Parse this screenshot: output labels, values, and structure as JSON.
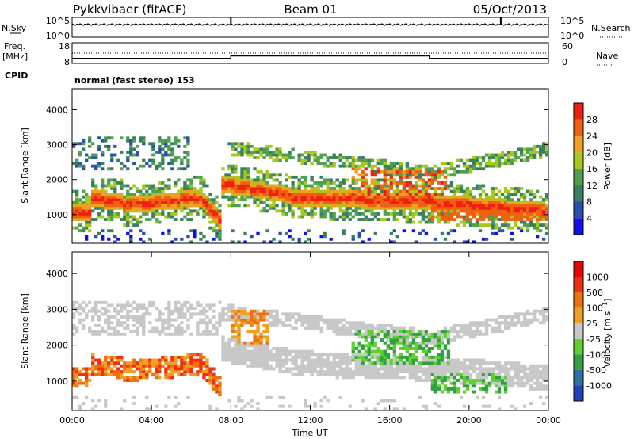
{
  "header": {
    "station": "Pykkvibaer (fitACF)",
    "beam": "Beam 01",
    "date": "05/Oct/2013"
  },
  "sky_panel": {
    "left_label": "N.Sky",
    "right_label": "N.Search",
    "left_ticks": [
      "10^5",
      "10^0"
    ],
    "right_ticks": [
      "10^5",
      "10^0"
    ]
  },
  "freq_panel": {
    "left_label_1": "Freq.",
    "left_label_2": "[MHz]",
    "right_label": "Nave",
    "left_ticks": [
      "18",
      "8"
    ],
    "right_ticks": [
      "60",
      "0"
    ],
    "freq_steps": [
      {
        "t": 0,
        "v": 10.2
      },
      {
        "t": 8,
        "v": 11.5
      },
      {
        "t": 18,
        "v": 10.2
      },
      {
        "t": 24,
        "v": 10.2
      }
    ]
  },
  "cpid": {
    "label": "CPID",
    "text": "normal (fast stereo) 153"
  },
  "chart_data": [
    {
      "type": "heatmap",
      "name": "power",
      "ylabel": "Slant Range [km]",
      "ylim": [
        180,
        4600
      ],
      "yticks": [
        "1000",
        "2000",
        "3000",
        "4000"
      ],
      "colorbar_label": "Power [dB]",
      "colorbar_ticks": [
        "4",
        "8",
        "12",
        "16",
        "20",
        "24",
        "28"
      ],
      "colors": [
        "#1010ee",
        "#2a4fae",
        "#3a7f5e",
        "#4fa050",
        "#a8c820",
        "#f0a020",
        "#f06010",
        "#f02010"
      ]
    },
    {
      "type": "heatmap",
      "name": "velocity",
      "ylabel": "Slant Range [km]",
      "xlabel": "Time UT",
      "ylim": [
        180,
        4600
      ],
      "xlim": [
        0,
        24
      ],
      "yticks": [
        "1000",
        "2000",
        "3000",
        "4000"
      ],
      "xticks": [
        "00:00",
        "04:00",
        "08:00",
        "12:00",
        "16:00",
        "20:00",
        "00:00"
      ],
      "colorbar_label": "Velocity [m s^-1]",
      "colorbar_ticks": [
        "1000",
        "500",
        "100",
        "25",
        "-25",
        "-100",
        "-500",
        "-1000"
      ],
      "colors": [
        "#2040c0",
        "#3070a0",
        "#30a040",
        "#60d030",
        "#c8c8c8",
        "#f0a020",
        "#f07010",
        "#f03010",
        "#f00000"
      ]
    }
  ]
}
